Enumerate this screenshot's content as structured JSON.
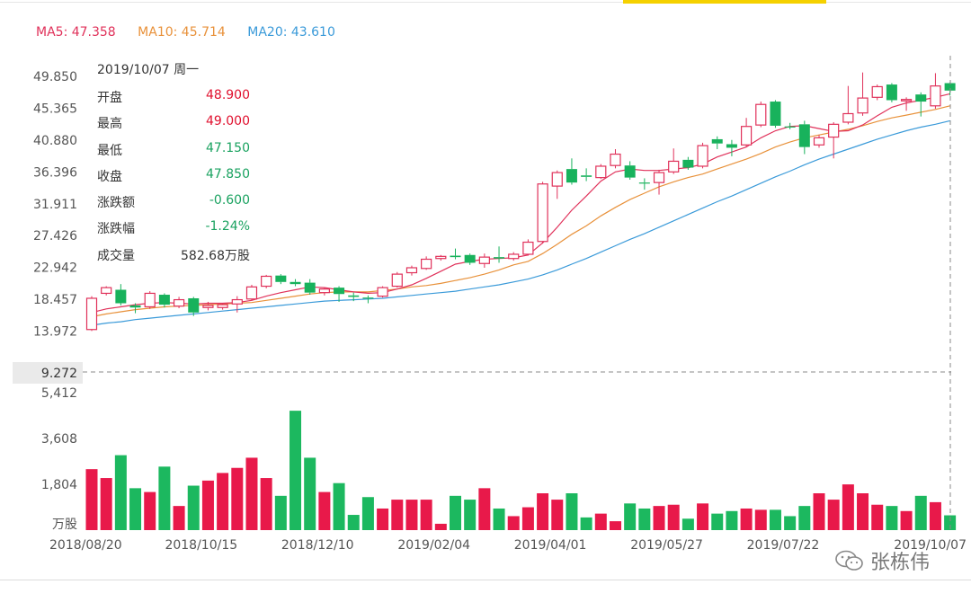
{
  "header": {
    "accent_color": "#f5d100"
  },
  "ma_legend": [
    {
      "label": "MA5: 47.358",
      "color": "#e0315a"
    },
    {
      "label": "MA10: 45.714",
      "color": "#e8913a"
    },
    {
      "label": "MA20: 43.610",
      "color": "#3a9ad9"
    }
  ],
  "info_panel": {
    "date": "2019/10/07 周一",
    "rows": [
      {
        "label": "开盘",
        "value": "48.900",
        "color": "#e0102e"
      },
      {
        "label": "最高",
        "value": "49.000",
        "color": "#e0102e"
      },
      {
        "label": "最低",
        "value": "47.150",
        "color": "#1aa260"
      },
      {
        "label": "收盘",
        "value": "47.850",
        "color": "#1aa260"
      },
      {
        "label": "涨跌额",
        "value": "-0.600",
        "color": "#1aa260"
      },
      {
        "label": "涨跌幅",
        "value": "-1.24%",
        "color": "#1aa260"
      },
      {
        "label": "成交量",
        "value": "582.68万股",
        "color": "#333333"
      }
    ]
  },
  "crosshair": {
    "price_label": "9.272"
  },
  "watermark": {
    "text": "张栋伟"
  },
  "chart_data": {
    "type": "candlestick",
    "price_axis": {
      "ticks": [
        "49.850",
        "45.365",
        "40.880",
        "36.396",
        "31.911",
        "27.426",
        "22.942",
        "18.457",
        "13.972"
      ],
      "ylim": [
        9.487,
        49.85
      ]
    },
    "volume_axis": {
      "ticks": [
        "5,412",
        "3,608",
        "1,804"
      ],
      "unit_label": "万股",
      "ylim": [
        0,
        5412
      ]
    },
    "x_axis": {
      "ticks": [
        "2018/08/20",
        "2018/10/15",
        "2018/12/10",
        "2019/02/04",
        "2019/04/01",
        "2019/05/27",
        "2019/07/22",
        "2019/10/07"
      ]
    },
    "colors": {
      "up": "#e0315a",
      "down": "#18b25c"
    },
    "candles": [
      {
        "o": 14.2,
        "c": 18.6,
        "h": 18.9,
        "l": 14.0,
        "v": 2400
      },
      {
        "o": 19.3,
        "c": 20.1,
        "h": 20.3,
        "l": 19.0,
        "v": 2050
      },
      {
        "o": 19.8,
        "c": 17.9,
        "h": 20.6,
        "l": 17.6,
        "v": 2950
      },
      {
        "o": 17.6,
        "c": 17.3,
        "h": 17.9,
        "l": 16.5,
        "v": 1650
      },
      {
        "o": 17.4,
        "c": 19.3,
        "h": 19.6,
        "l": 17.1,
        "v": 1500
      },
      {
        "o": 19.1,
        "c": 17.7,
        "h": 19.3,
        "l": 17.3,
        "v": 2500
      },
      {
        "o": 17.5,
        "c": 18.4,
        "h": 18.8,
        "l": 17.2,
        "v": 950
      },
      {
        "o": 18.6,
        "c": 16.6,
        "h": 18.8,
        "l": 16.1,
        "v": 1750
      },
      {
        "o": 17.3,
        "c": 17.6,
        "h": 18.1,
        "l": 16.9,
        "v": 1950
      },
      {
        "o": 17.3,
        "c": 17.7,
        "h": 17.9,
        "l": 17.0,
        "v": 2250
      },
      {
        "o": 17.8,
        "c": 18.4,
        "h": 18.9,
        "l": 16.6,
        "v": 2450
      },
      {
        "o": 18.5,
        "c": 20.2,
        "h": 20.5,
        "l": 18.3,
        "v": 2850
      },
      {
        "o": 20.3,
        "c": 21.7,
        "h": 21.9,
        "l": 20.0,
        "v": 2050
      },
      {
        "o": 21.8,
        "c": 20.9,
        "h": 22.0,
        "l": 20.6,
        "v": 1350
      },
      {
        "o": 20.9,
        "c": 20.6,
        "h": 21.3,
        "l": 20.3,
        "v": 4700
      },
      {
        "o": 20.8,
        "c": 19.4,
        "h": 21.3,
        "l": 19.1,
        "v": 2850
      },
      {
        "o": 19.4,
        "c": 19.9,
        "h": 20.1,
        "l": 19.0,
        "v": 1500
      },
      {
        "o": 20.1,
        "c": 19.2,
        "h": 20.3,
        "l": 18.1,
        "v": 1850
      },
      {
        "o": 19.0,
        "c": 18.8,
        "h": 19.4,
        "l": 18.2,
        "v": 600
      },
      {
        "o": 18.7,
        "c": 18.6,
        "h": 19.0,
        "l": 17.9,
        "v": 1300
      },
      {
        "o": 18.9,
        "c": 20.1,
        "h": 20.3,
        "l": 18.7,
        "v": 850
      },
      {
        "o": 20.3,
        "c": 22.0,
        "h": 22.3,
        "l": 20.1,
        "v": 1200
      },
      {
        "o": 22.2,
        "c": 22.9,
        "h": 23.2,
        "l": 21.8,
        "v": 1200
      },
      {
        "o": 22.8,
        "c": 24.1,
        "h": 24.5,
        "l": 22.6,
        "v": 1200
      },
      {
        "o": 24.2,
        "c": 24.5,
        "h": 24.7,
        "l": 23.9,
        "v": 250
      },
      {
        "o": 24.6,
        "c": 24.4,
        "h": 25.6,
        "l": 24.1,
        "v": 1350
      },
      {
        "o": 24.7,
        "c": 23.6,
        "h": 24.9,
        "l": 23.3,
        "v": 1200
      },
      {
        "o": 23.5,
        "c": 24.4,
        "h": 24.9,
        "l": 22.9,
        "v": 1650
      },
      {
        "o": 24.4,
        "c": 24.2,
        "h": 25.9,
        "l": 23.6,
        "v": 850
      },
      {
        "o": 24.2,
        "c": 24.8,
        "h": 25.1,
        "l": 23.9,
        "v": 550
      },
      {
        "o": 24.8,
        "c": 26.5,
        "h": 26.9,
        "l": 24.6,
        "v": 900
      },
      {
        "o": 26.6,
        "c": 34.7,
        "h": 35.0,
        "l": 26.3,
        "v": 1450
      },
      {
        "o": 34.4,
        "c": 36.3,
        "h": 36.6,
        "l": 32.6,
        "v": 1200
      },
      {
        "o": 36.8,
        "c": 34.9,
        "h": 38.3,
        "l": 34.6,
        "v": 1450
      },
      {
        "o": 35.9,
        "c": 35.7,
        "h": 36.9,
        "l": 35.1,
        "v": 500
      },
      {
        "o": 35.6,
        "c": 37.2,
        "h": 37.5,
        "l": 35.4,
        "v": 650
      },
      {
        "o": 37.3,
        "c": 38.9,
        "h": 39.6,
        "l": 36.9,
        "v": 350
      },
      {
        "o": 37.3,
        "c": 35.6,
        "h": 37.9,
        "l": 35.3,
        "v": 1050
      },
      {
        "o": 34.9,
        "c": 34.8,
        "h": 35.5,
        "l": 33.9,
        "v": 850
      },
      {
        "o": 34.9,
        "c": 36.3,
        "h": 36.7,
        "l": 33.2,
        "v": 950
      },
      {
        "o": 36.4,
        "c": 37.9,
        "h": 39.7,
        "l": 36.1,
        "v": 1000
      },
      {
        "o": 38.1,
        "c": 37.0,
        "h": 38.5,
        "l": 36.7,
        "v": 450
      },
      {
        "o": 37.2,
        "c": 40.1,
        "h": 40.5,
        "l": 36.9,
        "v": 1050
      },
      {
        "o": 41.0,
        "c": 40.4,
        "h": 41.4,
        "l": 39.6,
        "v": 650
      },
      {
        "o": 40.3,
        "c": 39.8,
        "h": 40.9,
        "l": 38.6,
        "v": 750
      },
      {
        "o": 40.2,
        "c": 42.8,
        "h": 44.0,
        "l": 39.9,
        "v": 850
      },
      {
        "o": 43.0,
        "c": 45.9,
        "h": 46.3,
        "l": 42.7,
        "v": 800
      },
      {
        "o": 46.3,
        "c": 42.9,
        "h": 46.5,
        "l": 42.6,
        "v": 800
      },
      {
        "o": 42.8,
        "c": 42.7,
        "h": 43.3,
        "l": 42.4,
        "v": 550
      },
      {
        "o": 43.1,
        "c": 39.9,
        "h": 43.6,
        "l": 38.9,
        "v": 950
      },
      {
        "o": 40.2,
        "c": 41.2,
        "h": 41.6,
        "l": 39.8,
        "v": 1450
      },
      {
        "o": 41.3,
        "c": 43.1,
        "h": 43.4,
        "l": 38.3,
        "v": 1200
      },
      {
        "o": 43.4,
        "c": 44.6,
        "h": 48.5,
        "l": 43.1,
        "v": 1800
      },
      {
        "o": 44.7,
        "c": 46.8,
        "h": 50.4,
        "l": 44.3,
        "v": 1450
      },
      {
        "o": 46.9,
        "c": 48.4,
        "h": 48.7,
        "l": 46.5,
        "v": 1000
      },
      {
        "o": 48.7,
        "c": 46.5,
        "h": 48.9,
        "l": 46.2,
        "v": 950
      },
      {
        "o": 46.4,
        "c": 46.6,
        "h": 46.9,
        "l": 45.0,
        "v": 750
      },
      {
        "o": 47.3,
        "c": 46.3,
        "h": 47.6,
        "l": 44.2,
        "v": 1350
      },
      {
        "o": 45.7,
        "c": 48.5,
        "h": 50.3,
        "l": 45.3,
        "v": 1100
      },
      {
        "o": 48.9,
        "c": 47.85,
        "h": 49.0,
        "l": 47.15,
        "v": 582.68
      }
    ],
    "ma5": [
      16.6,
      17.1,
      17.4,
      17.7,
      17.9,
      18.0,
      17.9,
      17.8,
      17.9,
      17.9,
      18.0,
      18.3,
      18.9,
      19.4,
      19.8,
      20.2,
      20.1,
      19.8,
      19.5,
      19.3,
      19.4,
      19.9,
      20.5,
      21.4,
      22.4,
      23.4,
      23.8,
      24.1,
      24.2,
      24.3,
      24.7,
      26.4,
      28.6,
      31.0,
      33.0,
      35.1,
      36.4,
      36.8,
      36.6,
      36.6,
      36.8,
      37.0,
      37.5,
      38.5,
      39.2,
      39.9,
      41.2,
      42.2,
      42.8,
      42.9,
      42.5,
      42.1,
      42.2,
      43.0,
      44.3,
      45.5,
      46.1,
      46.5,
      46.9,
      47.4
    ],
    "ma10": [
      16.0,
      16.4,
      16.7,
      17.0,
      17.2,
      17.4,
      17.5,
      17.6,
      17.7,
      17.8,
      17.9,
      18.0,
      18.3,
      18.6,
      18.9,
      19.2,
      19.4,
      19.5,
      19.5,
      19.5,
      19.7,
      19.9,
      20.2,
      20.4,
      20.7,
      21.1,
      21.5,
      22.0,
      22.6,
      23.3,
      23.8,
      24.9,
      26.2,
      27.6,
      28.8,
      30.2,
      31.4,
      32.5,
      33.4,
      34.3,
      35.0,
      35.6,
      36.1,
      36.8,
      37.5,
      38.2,
      39.0,
      39.9,
      40.6,
      41.2,
      41.6,
      42.0,
      42.4,
      42.9,
      43.5,
      44.0,
      44.4,
      44.8,
      45.2,
      45.7
    ],
    "ma20": [
      14.8,
      15.1,
      15.3,
      15.6,
      15.8,
      16.0,
      16.2,
      16.4,
      16.6,
      16.8,
      17.0,
      17.2,
      17.4,
      17.6,
      17.8,
      18.0,
      18.2,
      18.3,
      18.4,
      18.5,
      18.6,
      18.8,
      19.0,
      19.2,
      19.4,
      19.6,
      19.9,
      20.2,
      20.5,
      20.9,
      21.3,
      21.9,
      22.6,
      23.4,
      24.2,
      25.1,
      26.0,
      26.9,
      27.7,
      28.6,
      29.5,
      30.4,
      31.3,
      32.2,
      33.0,
      33.9,
      34.8,
      35.7,
      36.5,
      37.4,
      38.2,
      38.9,
      39.6,
      40.3,
      41.0,
      41.6,
      42.2,
      42.7,
      43.1,
      43.6
    ]
  }
}
